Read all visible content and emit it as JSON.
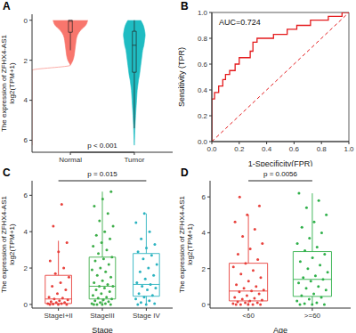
{
  "chart_data": [
    {
      "title": "A",
      "type": "violin",
      "categories": [
        "Normal",
        "Tumor"
      ],
      "colors": [
        "#F8766D",
        "#1FBCC2"
      ],
      "ylabel": "The expression of ZFHX4-AS1\nlog2(TPM+1)",
      "annotation": "p < 0.001",
      "ylim": [
        -0.3,
        6.6
      ],
      "yticks": [
        0,
        2,
        4,
        6
      ],
      "density_y": [
        0,
        0.25,
        0.5,
        0.75,
        1,
        1.25,
        1.5,
        1.75,
        2,
        2.25,
        2.5,
        2.75,
        3,
        3.25,
        3.5,
        3.75,
        4,
        4.25,
        4.5,
        4.75,
        5,
        5.25,
        5.5,
        5.75,
        6,
        6.25
      ],
      "density_width": [
        [
          0.27,
          0.24,
          0.16,
          0.11,
          0.09,
          0.08,
          0.07,
          0.06,
          0.04,
          0,
          null,
          null,
          null,
          null,
          null,
          null,
          null,
          null,
          null,
          null,
          null,
          null,
          null,
          null,
          null,
          null
        ],
        [
          0.1,
          0.14,
          0.16,
          0.17,
          0.16,
          0.15,
          0.13,
          0.12,
          0.11,
          0.1,
          0.09,
          0.08,
          0.065,
          0.055,
          0.045,
          0.04,
          0.035,
          0.03,
          0.025,
          0.02,
          0.016,
          0.012,
          0.009,
          0.006,
          0.003,
          0
        ]
      ],
      "box": [
        {
          "min": 0,
          "q1": 0,
          "median": 0.05,
          "q3": 0.6,
          "max": 1.5
        },
        {
          "min": 0,
          "q1": 0.55,
          "median": 1.25,
          "q3": 2.6,
          "max": 5.4
        }
      ]
    },
    {
      "title": "B",
      "type": "line",
      "xlabel": "1-Specificity(FPR)",
      "ylabel": "Sensitivity (TPR)",
      "annotation": "AUC=0.724",
      "color": "#E41A1C",
      "x": [
        0,
        0,
        0.02,
        0.02,
        0.05,
        0.05,
        0.08,
        0.08,
        0.1,
        0.1,
        0.13,
        0.13,
        0.17,
        0.17,
        0.2,
        0.2,
        0.28,
        0.28,
        0.3,
        0.3,
        0.33,
        0.33,
        0.45,
        0.45,
        0.55,
        0.55,
        0.62,
        0.62,
        0.72,
        0.72,
        0.85,
        0.85,
        0.95,
        0.95,
        1
      ],
      "values": [
        0,
        0.33,
        0.33,
        0.38,
        0.38,
        0.43,
        0.43,
        0.48,
        0.48,
        0.52,
        0.52,
        0.55,
        0.55,
        0.6,
        0.6,
        0.65,
        0.65,
        0.7,
        0.7,
        0.77,
        0.77,
        0.8,
        0.8,
        0.83,
        0.83,
        0.87,
        0.87,
        0.9,
        0.9,
        0.94,
        0.94,
        0.97,
        0.97,
        1,
        1
      ],
      "xlim": [
        0,
        1
      ],
      "ylim": [
        0,
        1
      ],
      "xticks": [
        {
          "value": 0,
          "label": "0.0"
        },
        0.2,
        0.4,
        0.6,
        0.8,
        {
          "value": 1,
          "label": "1.0"
        }
      ],
      "yticks": [
        {
          "value": 0,
          "label": "0.0"
        },
        0.2,
        0.4,
        0.6,
        0.8,
        {
          "value": 1,
          "label": "1.0"
        }
      ]
    },
    {
      "title": "C",
      "type": "box",
      "categories": [
        "StageI+II",
        "StageIII",
        "Stage IV"
      ],
      "colors": [
        "#E8413C",
        "#3DAE49",
        "#2BB3C0"
      ],
      "xlabel": "Stage",
      "ylabel": "The expression of ZFHX4-AS1\nlog2(TPM+1)",
      "annotation": "p = 0.015",
      "ylim": [
        -0.2,
        6.8
      ],
      "yticks": [
        0,
        2,
        4,
        6
      ],
      "values": [
        [
          0,
          0,
          0,
          0.02,
          0.05,
          0.05,
          0.1,
          0.1,
          0.15,
          0.2,
          0.25,
          0.3,
          0.35,
          0.4,
          0.6,
          0.8,
          1.0,
          1.2,
          1.5,
          1.7,
          2.0,
          2.4,
          2.9,
          3.4,
          4.3,
          5.5
        ],
        [
          0,
          0,
          0,
          0,
          0.05,
          0.05,
          0.1,
          0.15,
          0.2,
          0.25,
          0.3,
          0.35,
          0.4,
          0.5,
          0.6,
          0.7,
          0.8,
          0.9,
          1.0,
          1.0,
          1.1,
          1.2,
          1.3,
          1.5,
          1.6,
          1.8,
          1.9,
          2.0,
          2.2,
          2.4,
          2.5,
          2.6,
          2.8,
          3.0,
          3.2,
          3.4,
          3.6,
          3.8,
          4.0,
          4.3,
          4.6,
          5.0,
          5.4,
          5.8,
          6.2
        ],
        [
          0,
          0,
          0.05,
          0.1,
          0.2,
          0.3,
          0.4,
          0.5,
          0.6,
          0.8,
          0.9,
          1.0,
          1.1,
          1.2,
          1.4,
          1.6,
          1.8,
          2.0,
          2.2,
          2.5,
          2.7,
          2.9,
          3.1,
          3.3,
          3.6,
          4.0,
          4.5,
          5.0
        ]
      ],
      "box": [
        {
          "min": 0,
          "q1": 0.05,
          "median": 0.3,
          "q3": 1.6,
          "max": 3.5
        },
        {
          "min": 0,
          "q1": 0.3,
          "median": 1.0,
          "q3": 2.6,
          "max": 6.2
        },
        {
          "min": 0,
          "q1": 0.45,
          "median": 1.1,
          "q3": 2.8,
          "max": 5.0
        }
      ]
    },
    {
      "title": "D",
      "type": "box",
      "categories": [
        "<60",
        ">=60"
      ],
      "colors": [
        "#E8413C",
        "#2FB04A"
      ],
      "xlabel": "Age",
      "ylabel": "The expression of ZFHX4-AS1\nlog2(TPM+1)",
      "annotation": "p = 0.0056",
      "ylim": [
        -0.2,
        6.9
      ],
      "yticks": [
        0,
        2,
        4,
        6
      ],
      "values": [
        [
          0,
          0,
          0,
          0,
          0,
          0.05,
          0.1,
          0.1,
          0.15,
          0.2,
          0.25,
          0.3,
          0.35,
          0.4,
          0.5,
          0.6,
          0.7,
          0.75,
          0.8,
          0.9,
          1.0,
          1.1,
          1.3,
          1.5,
          1.7,
          1.9,
          2.1,
          2.3,
          2.5,
          2.8,
          3.1,
          3.4,
          3.8,
          4.2,
          4.6,
          5.0,
          5.5,
          6.0
        ],
        [
          0,
          0,
          0,
          0.05,
          0.1,
          0.2,
          0.3,
          0.4,
          0.5,
          0.6,
          0.8,
          0.9,
          1.0,
          1.2,
          1.3,
          1.4,
          1.5,
          1.6,
          1.8,
          2.0,
          2.2,
          2.4,
          2.6,
          2.8,
          3.0,
          3.2,
          3.4,
          3.7,
          4.0,
          4.3,
          4.6,
          5.0,
          5.4,
          5.8,
          6.2
        ]
      ],
      "box": [
        {
          "min": 0,
          "q1": 0.2,
          "median": 0.75,
          "q3": 2.3,
          "max": 5.0
        },
        {
          "min": 0,
          "q1": 0.45,
          "median": 1.4,
          "q3": 2.95,
          "max": 6.2
        }
      ]
    }
  ]
}
